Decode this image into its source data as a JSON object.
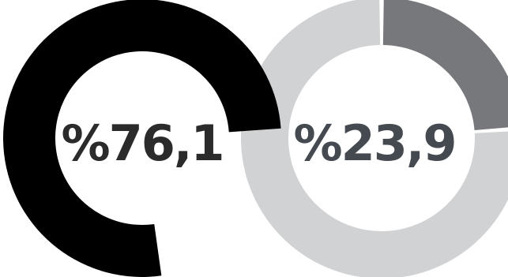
{
  "chart_data": [
    {
      "type": "pie",
      "categories": [
        "",
        ""
      ],
      "values": [
        76.1,
        23.9
      ],
      "colors": [
        "#000000",
        "#ffffff"
      ],
      "label": "%76,1",
      "label_color": "#2b2b2b"
    },
    {
      "type": "pie",
      "categories": [
        "",
        ""
      ],
      "values": [
        23.9,
        76.1
      ],
      "colors": [
        "#77787b",
        "#d1d2d4"
      ],
      "label": "%23,9",
      "label_color": "#444a50"
    }
  ]
}
